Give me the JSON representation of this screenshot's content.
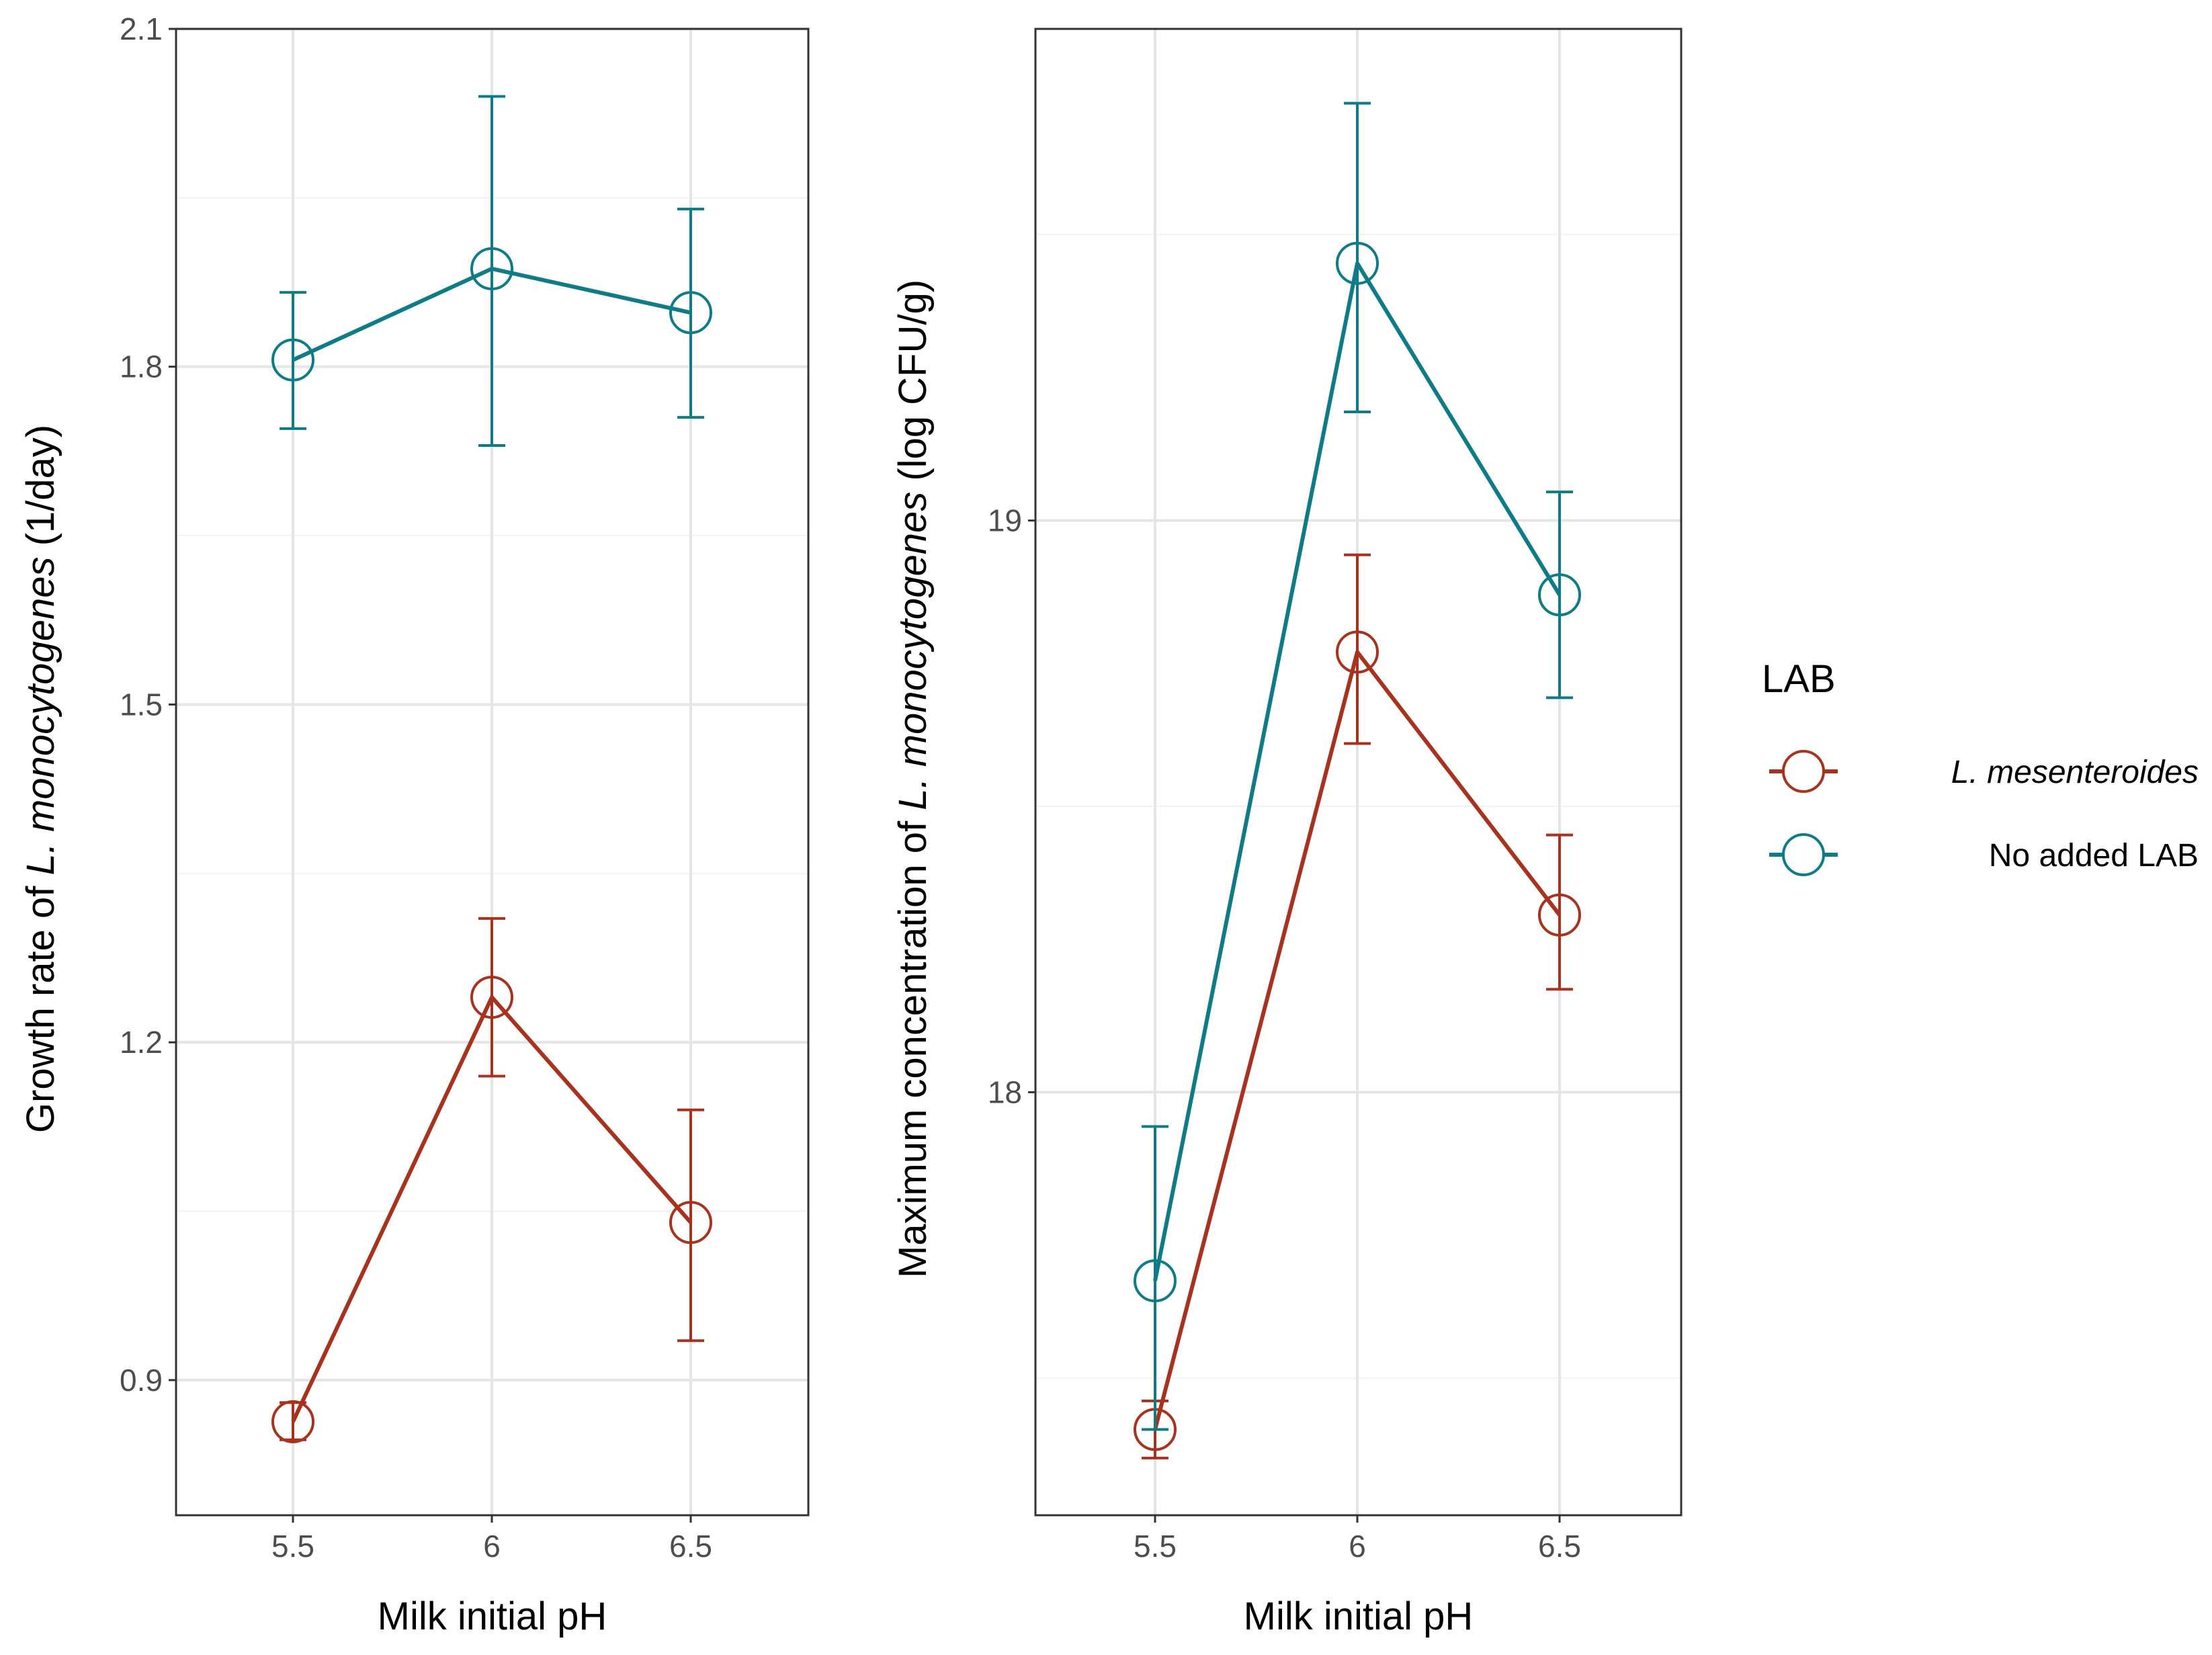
{
  "colors": {
    "mesenteroides": "#A8321E",
    "no_added": "#0E7C86",
    "grid_major": "#e5e5e5",
    "grid_minor": "#f2f2f2",
    "panel_border": "#333333"
  },
  "legend": {
    "title": "LAB",
    "items": [
      {
        "label": "L. mesenteroides",
        "italic": true,
        "color": "#A8321E"
      },
      {
        "label": "No added LAB",
        "italic": false,
        "color": "#0E7C86"
      }
    ]
  },
  "chart_data": [
    {
      "type": "line",
      "xlabel": "Milk initial pH",
      "ylabel_prefix": "Growth rate of ",
      "ylabel_italic": "L. monocytogenes",
      "ylabel_suffix": " (1/day)",
      "categories": [
        "5.5",
        "6",
        "6.5"
      ],
      "ylim": [
        0.78,
        2.1
      ],
      "yticks": [
        0.9,
        1.2,
        1.5,
        1.8,
        2.1
      ],
      "ytick_labels": [
        "0.9",
        "1.2",
        "1.5",
        "1.8",
        "2.1"
      ],
      "yminor": [
        1.05,
        1.35,
        1.65,
        1.95
      ],
      "series": [
        {
          "name": "L. mesenteroides",
          "values": [
            0.863,
            1.24,
            1.04
          ],
          "lower": [
            0.847,
            1.17,
            0.935
          ],
          "upper": [
            0.88,
            1.31,
            1.14
          ]
        },
        {
          "name": "No added LAB",
          "values": [
            1.806,
            1.887,
            1.848
          ],
          "lower": [
            1.745,
            1.73,
            1.755
          ],
          "upper": [
            1.866,
            2.04,
            1.94
          ]
        }
      ]
    },
    {
      "type": "line",
      "xlabel": "Milk initial pH",
      "ylabel_prefix": "Maximum concentration of ",
      "ylabel_italic": "L. monocytogenes",
      "ylabel_suffix": " (log CFU/g)",
      "categories": [
        "5.5",
        "6",
        "6.5"
      ],
      "ylim": [
        17.26,
        19.86
      ],
      "yticks": [
        18,
        19
      ],
      "ytick_labels": [
        "18",
        "19"
      ],
      "yminor": [
        17.5,
        18.5,
        19.5
      ],
      "series": [
        {
          "name": "L. mesenteroides",
          "values": [
            17.41,
            18.77,
            18.31
          ],
          "lower": [
            17.36,
            18.61,
            18.18
          ],
          "upper": [
            17.46,
            18.94,
            18.45
          ]
        },
        {
          "name": "No added LAB",
          "values": [
            17.67,
            19.45,
            18.87
          ],
          "lower": [
            17.41,
            19.19,
            18.69
          ],
          "upper": [
            17.94,
            19.73,
            19.05
          ]
        }
      ]
    }
  ]
}
